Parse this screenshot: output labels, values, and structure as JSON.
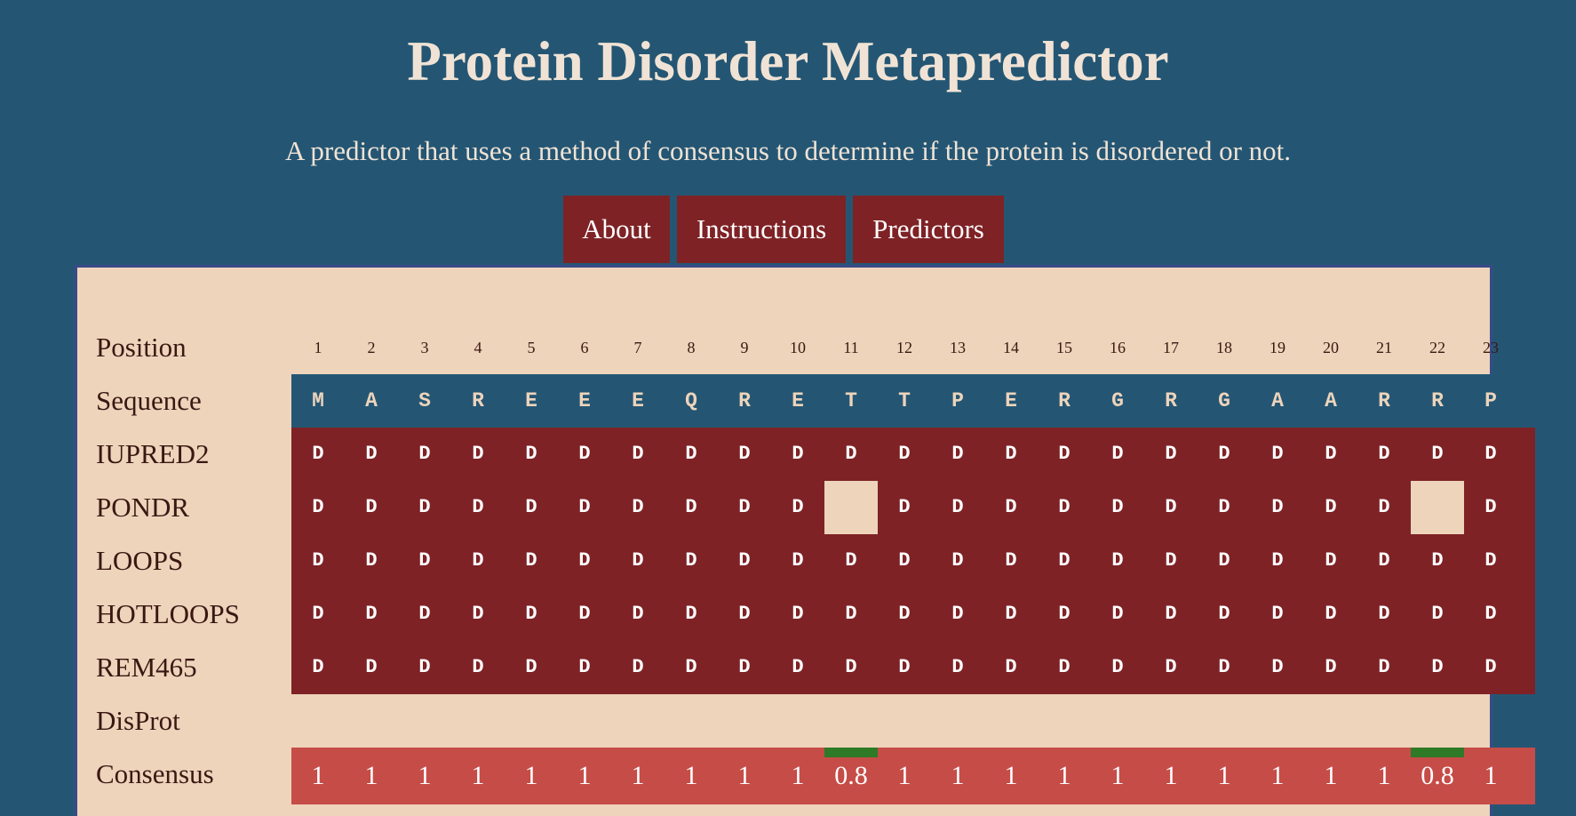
{
  "header": {
    "title": "Protein Disorder Metapredictor",
    "subtitle": "A predictor that uses a method of consensus to determine if the protein is disordered or not."
  },
  "nav": [
    {
      "label": "About"
    },
    {
      "label": "Instructions"
    },
    {
      "label": "Predictors"
    }
  ],
  "table": {
    "labels": {
      "position": "Position",
      "sequence": "Sequence",
      "disprot": "DisProt",
      "consensus": "Consensus"
    },
    "positions": [
      "1",
      "2",
      "3",
      "4",
      "5",
      "6",
      "7",
      "8",
      "9",
      "10",
      "11",
      "12",
      "13",
      "14",
      "15",
      "16",
      "17",
      "18",
      "19",
      "20",
      "21",
      "22",
      "23"
    ],
    "sequence": [
      "M",
      "A",
      "S",
      "R",
      "E",
      "E",
      "E",
      "Q",
      "R",
      "E",
      "T",
      "T",
      "P",
      "E",
      "R",
      "G",
      "R",
      "G",
      "A",
      "A",
      "R",
      "R",
      "P"
    ],
    "predictors": [
      {
        "name": "IUPRED2",
        "values": [
          "D",
          "D",
          "D",
          "D",
          "D",
          "D",
          "D",
          "D",
          "D",
          "D",
          "D",
          "D",
          "D",
          "D",
          "D",
          "D",
          "D",
          "D",
          "D",
          "D",
          "D",
          "D",
          "D"
        ]
      },
      {
        "name": "PONDR",
        "values": [
          "D",
          "D",
          "D",
          "D",
          "D",
          "D",
          "D",
          "D",
          "D",
          "D",
          "",
          "D",
          "D",
          "D",
          "D",
          "D",
          "D",
          "D",
          "D",
          "D",
          "D",
          "",
          "D"
        ]
      },
      {
        "name": "LOOPS",
        "values": [
          "D",
          "D",
          "D",
          "D",
          "D",
          "D",
          "D",
          "D",
          "D",
          "D",
          "D",
          "D",
          "D",
          "D",
          "D",
          "D",
          "D",
          "D",
          "D",
          "D",
          "D",
          "D",
          "D"
        ]
      },
      {
        "name": "HOTLOOPS",
        "values": [
          "D",
          "D",
          "D",
          "D",
          "D",
          "D",
          "D",
          "D",
          "D",
          "D",
          "D",
          "D",
          "D",
          "D",
          "D",
          "D",
          "D",
          "D",
          "D",
          "D",
          "D",
          "D",
          "D"
        ]
      },
      {
        "name": "REM465",
        "values": [
          "D",
          "D",
          "D",
          "D",
          "D",
          "D",
          "D",
          "D",
          "D",
          "D",
          "D",
          "D",
          "D",
          "D",
          "D",
          "D",
          "D",
          "D",
          "D",
          "D",
          "D",
          "D",
          "D"
        ]
      }
    ],
    "consensus": [
      "1",
      "1",
      "1",
      "1",
      "1",
      "1",
      "1",
      "1",
      "1",
      "1",
      "0.8",
      "1",
      "1",
      "1",
      "1",
      "1",
      "1",
      "1",
      "1",
      "1",
      "1",
      "0.8",
      "1"
    ],
    "colors": {
      "sequence_band": "#245674",
      "predictor_band": "#7e2226",
      "consensus_band": "#c64c47",
      "consensus_marker": "#2e7a26"
    }
  }
}
